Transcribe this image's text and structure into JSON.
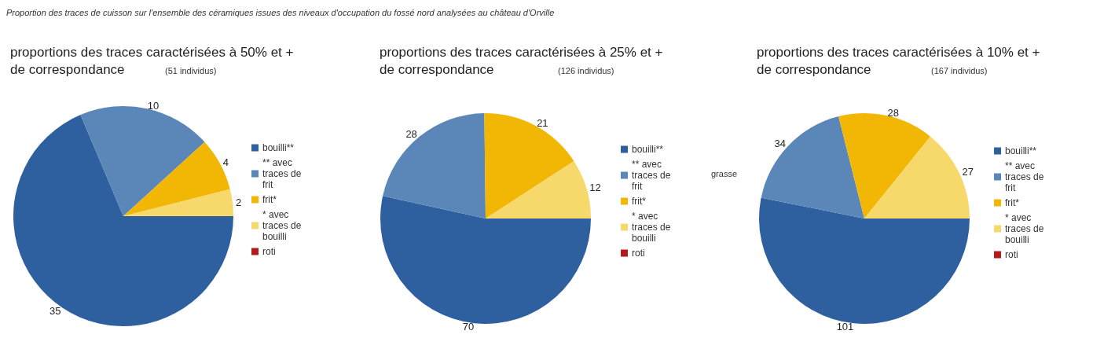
{
  "chart_data": [
    {
      "type": "pie",
      "title": "proportions des traces caractérisées à 50% et + de correspondance",
      "subtitle": "(51 individus)",
      "annotations": [
        "Proportion des traces de cuisson sur l'ensemble des céramiques issues des niveaux d'occupation du fossé nord analysées au château d'Orville"
      ],
      "categories": [
        "bouilli**",
        "** avec traces de frit",
        "frit*",
        "* avec traces de bouilli",
        "roti"
      ],
      "values": [
        35,
        10,
        4,
        2,
        0
      ],
      "value_labels": [
        "35",
        "10",
        "4",
        "2",
        null
      ],
      "colors": [
        "#2e5f9e",
        "#5b86b8",
        "#f2b705",
        "#f7d86a",
        "#b51a1a"
      ],
      "legend": "right"
    },
    {
      "type": "pie",
      "title": "proportions des traces caractérisées à 25% et + de correspondance",
      "subtitle": "(126 individus)",
      "annotations": [
        "grasse"
      ],
      "categories": [
        "bouilli**",
        "** avec traces de frit",
        "frit*",
        "* avec traces de bouilli",
        "roti"
      ],
      "values": [
        70,
        28,
        21,
        12,
        0
      ],
      "value_labels": [
        "70",
        "28",
        "21",
        "12",
        null
      ],
      "colors": [
        "#2e5f9e",
        "#5b86b8",
        "#f2b705",
        "#f7d86a",
        "#b51a1a"
      ],
      "legend": "right"
    },
    {
      "type": "pie",
      "title": "proportions des traces caractérisées à 10% et + de correspondance",
      "subtitle": "(167 individus)",
      "categories": [
        "bouilli**",
        "** avec traces de frit",
        "frit*",
        "* avec traces de bouilli",
        "roti"
      ],
      "values": [
        101,
        34,
        28,
        27,
        0
      ],
      "value_labels": [
        "101",
        "34",
        "28",
        "27",
        null
      ],
      "colors": [
        "#2e5f9e",
        "#5b86b8",
        "#f2b705",
        "#f7d86a",
        "#b51a1a"
      ],
      "legend": "right"
    }
  ]
}
